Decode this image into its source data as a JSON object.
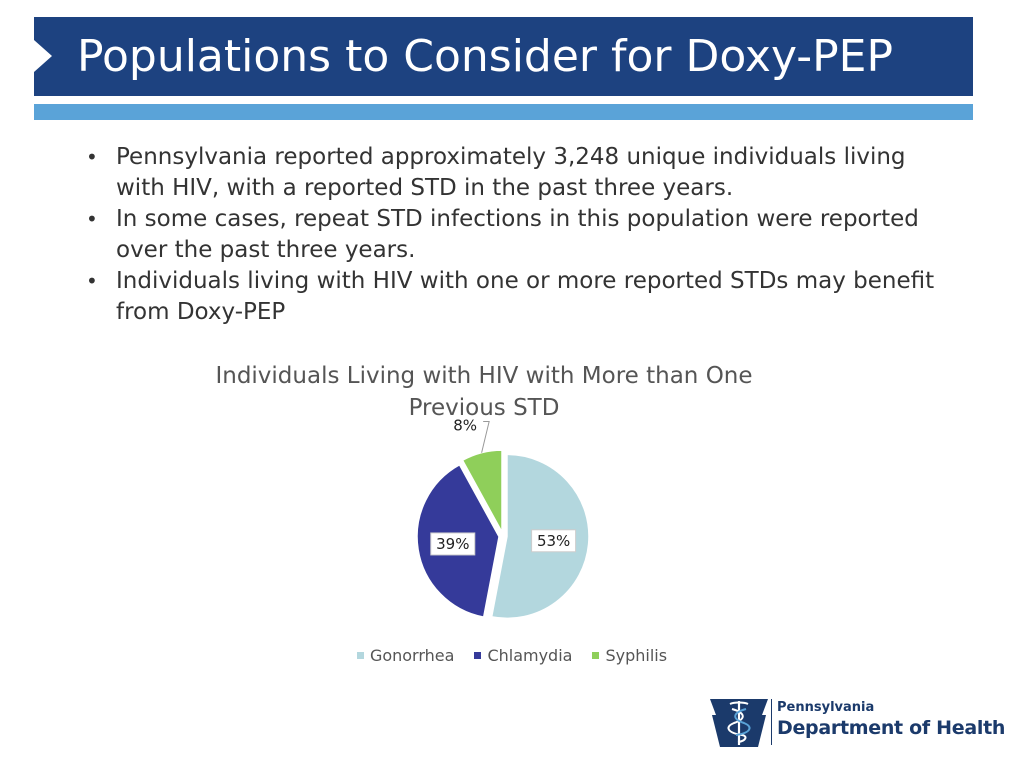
{
  "slide": {
    "title": "Populations to Consider for Doxy-PEP",
    "bullets": [
      "Pennsylvania reported approximately 3,248 unique individuals living with HIV, with a reported STD in the past three years.",
      "In some cases, repeat STD infections in this population were reported over the past three years.",
      "Individuals living with HIV with one or more reported STDs may benefit from Doxy-PEP"
    ]
  },
  "colors": {
    "title_bar": "#1d4280",
    "accent_bar": "#5aa3d8",
    "gonorrhea": "#b3d7de",
    "chlamydia": "#353a9a",
    "syphilis": "#8fcf5a"
  },
  "chart_data": {
    "type": "pie",
    "title": "Individuals Living with HIV with More than One Previous STD",
    "categories": [
      "Gonorrhea",
      "Chlamydia",
      "Syphilis"
    ],
    "values": [
      53,
      39,
      8
    ],
    "data_labels": [
      "53%",
      "39%",
      "8%"
    ],
    "legend_position": "bottom",
    "exploded": true
  },
  "logo": {
    "line1": "Pennsylvania",
    "line2": "Department of Health",
    "icon": "keystone-caduceus-icon"
  }
}
